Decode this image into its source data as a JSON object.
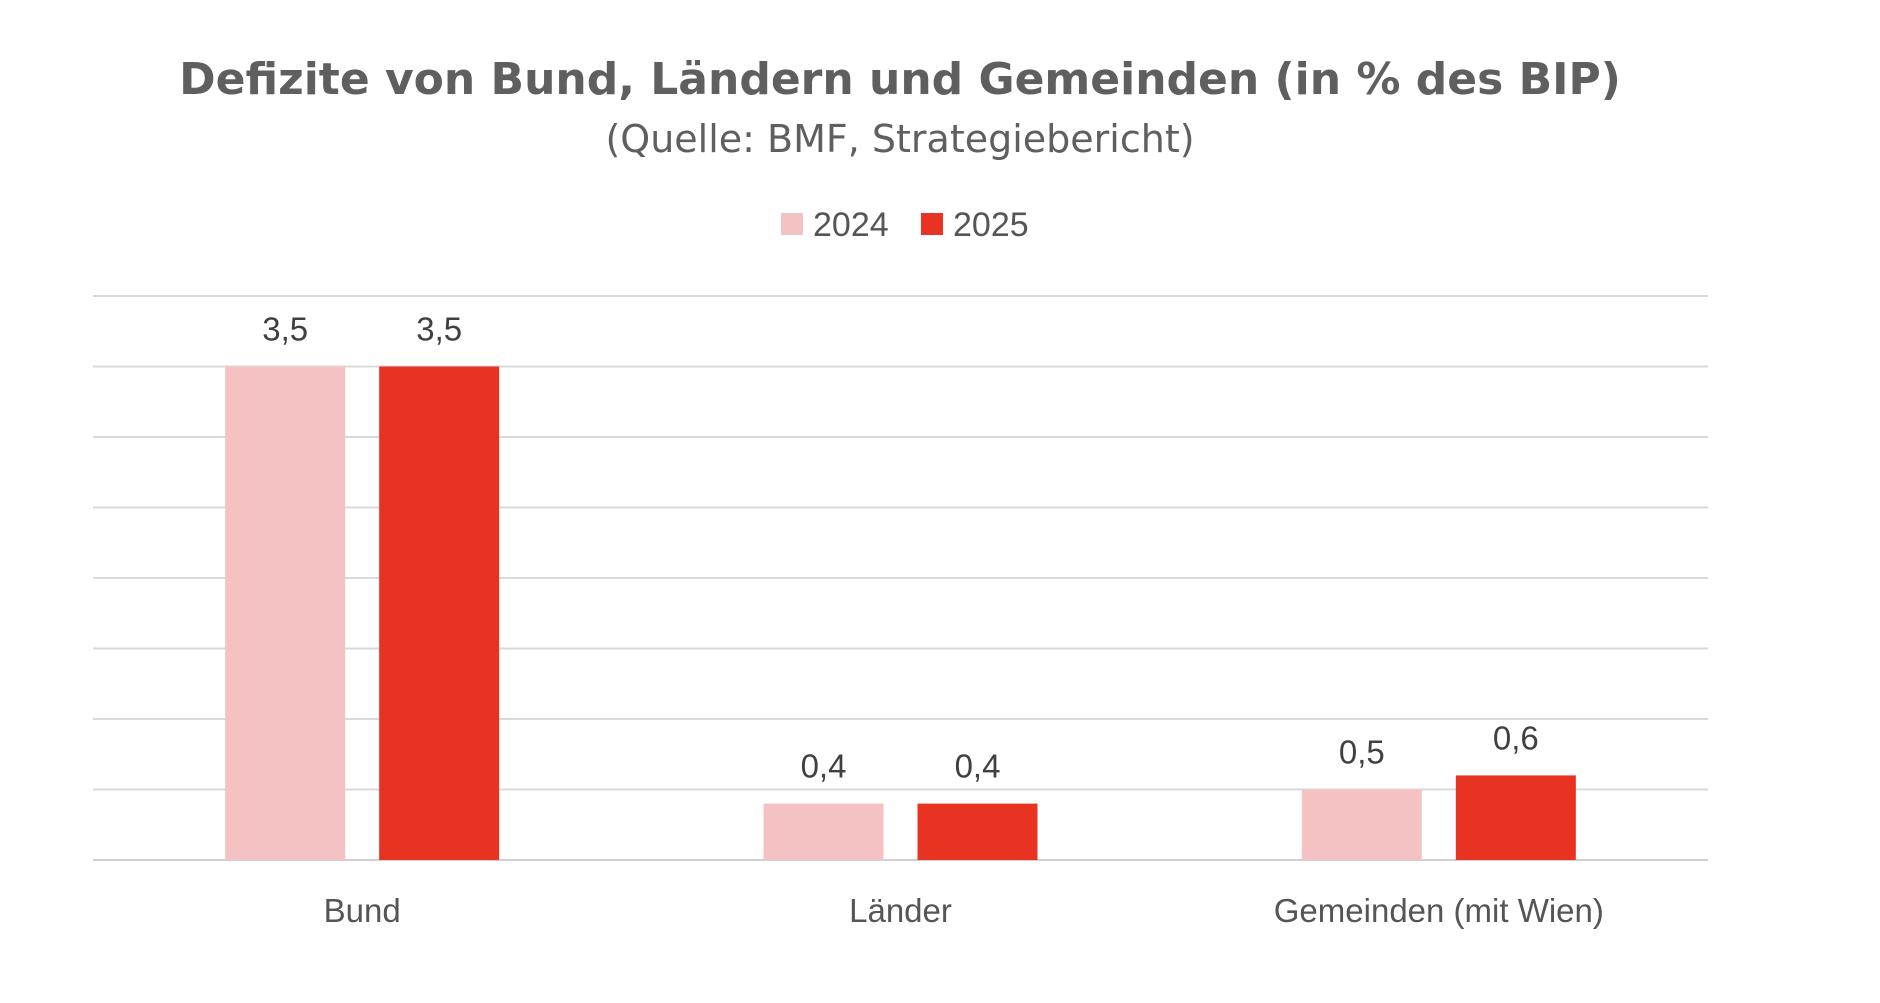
{
  "chart_data": {
    "type": "bar",
    "title": "Defizite von Bund, Ländern und Gemeinden (in % des BIP)",
    "subtitle": "(Quelle: BMF, Strategiebericht)",
    "categories": [
      "Bund",
      "Länder",
      "Gemeinden (mit Wien)"
    ],
    "series": [
      {
        "name": "2024",
        "values": [
          3.5,
          0.4,
          0.5
        ],
        "labels": [
          "3,5",
          "0,4",
          "0,5"
        ],
        "color": "#f4c2c2"
      },
      {
        "name": "2025",
        "values": [
          3.5,
          0.4,
          0.6
        ],
        "labels": [
          "3,5",
          "0,4",
          "0,6"
        ],
        "color": "#e83323"
      }
    ],
    "ylim": [
      0,
      4
    ],
    "grid": true,
    "legend": "top-center",
    "xlabel": "",
    "ylabel": ""
  }
}
